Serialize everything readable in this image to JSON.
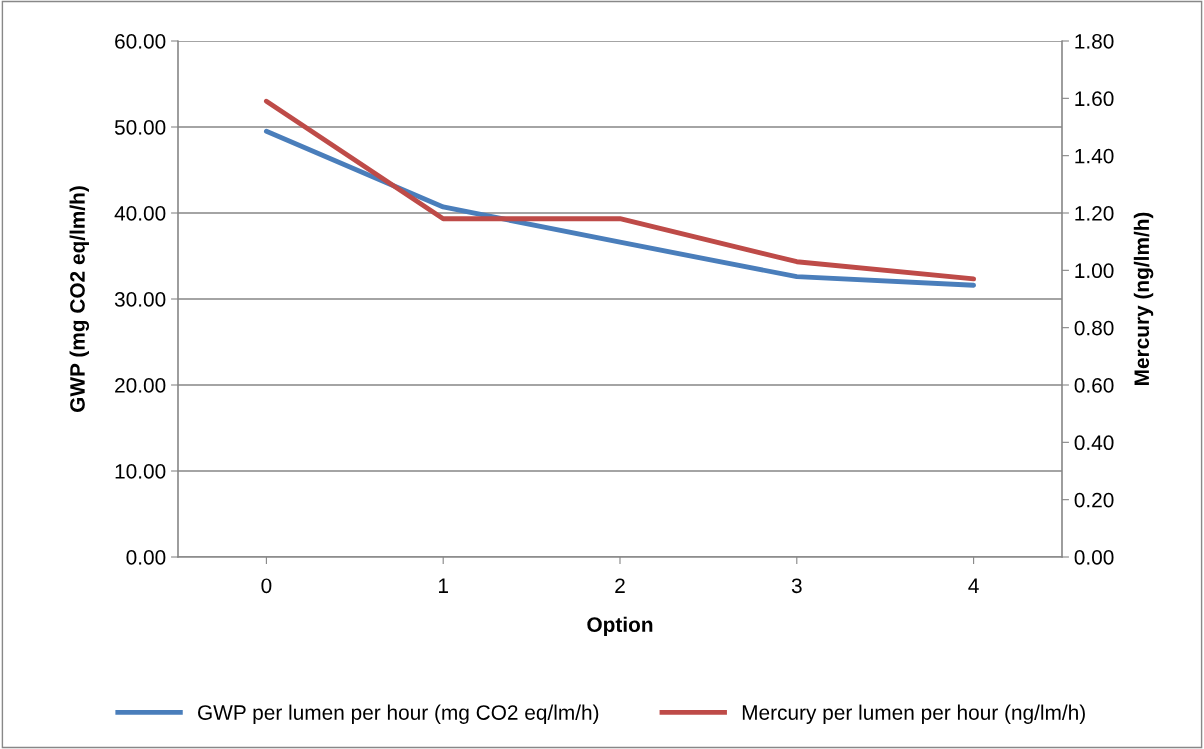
{
  "chart_data": {
    "type": "line",
    "categories": [
      "0",
      "1",
      "2",
      "3",
      "4"
    ],
    "xlabel": "Option",
    "ylabel": "GWP (mg CO2 eq/lm/h)",
    "y2label": "Mercury (ng/lm/h)",
    "series": [
      {
        "name": "GWP per lumen per hour (mg CO2 eq/lm/h)",
        "color": "#4a7ebb",
        "values": [
          49.5,
          40.7,
          36.6,
          32.6,
          31.6
        ]
      },
      {
        "name": "Mercury per lumen per hour (ng/lm/h)",
        "color": "#be4b48",
        "axis": "y2",
        "values": [
          1.59,
          1.18,
          1.18,
          1.03,
          0.97
        ]
      }
    ],
    "ylim": [
      0,
      60
    ],
    "yticks": [
      {
        "value": 0,
        "label": "0.00"
      },
      {
        "value": 10,
        "label": "10.00"
      },
      {
        "value": 20,
        "label": "20.00"
      },
      {
        "value": 30,
        "label": "30.00"
      },
      {
        "value": 40,
        "label": "40.00"
      },
      {
        "value": 50,
        "label": "50.00"
      },
      {
        "value": 60,
        "label": "60.00"
      }
    ],
    "y2lim": [
      0,
      1.8
    ],
    "y2ticks": [
      {
        "value": 0,
        "label": "0.00"
      },
      {
        "value": 0.2,
        "label": "0.20"
      },
      {
        "value": 0.4,
        "label": "0.40"
      },
      {
        "value": 0.6,
        "label": "0.60"
      },
      {
        "value": 0.8,
        "label": "0.80"
      },
      {
        "value": 1.0,
        "label": "1.00"
      },
      {
        "value": 1.2,
        "label": "1.20"
      },
      {
        "value": 1.4,
        "label": "1.40"
      },
      {
        "value": 1.6,
        "label": "1.60"
      },
      {
        "value": 1.8,
        "label": "1.80"
      }
    ],
    "grid": "y",
    "legend": "bottom",
    "marker": "none",
    "line_style": "solid"
  }
}
